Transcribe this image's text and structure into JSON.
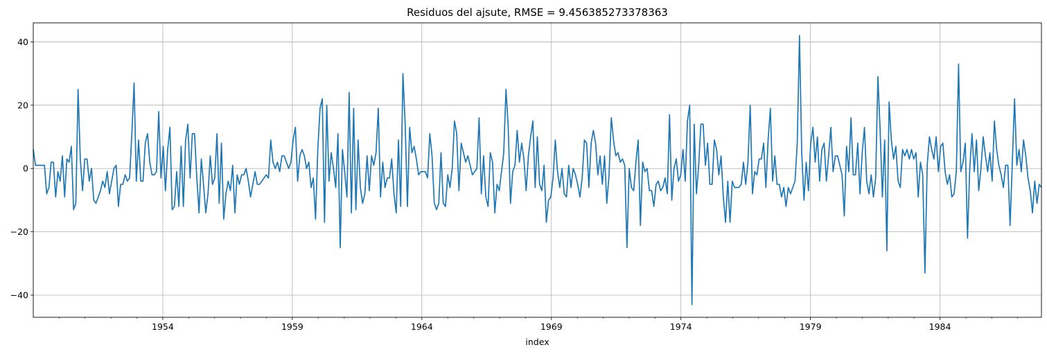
{
  "chart_data": {
    "type": "line",
    "title": "Residuos del ajsute, RMSE = 9.456385273378363",
    "xlabel": "index",
    "ylabel": "",
    "x_start": "1949-01",
    "x_end": "1987-12",
    "xlim": [
      "1949-01",
      "1987-12"
    ],
    "ylim": [
      -47,
      46
    ],
    "x_ticks": [
      "1954",
      "1959",
      "1964",
      "1969",
      "1974",
      "1979",
      "1984"
    ],
    "y_ticks": [
      -40,
      -20,
      0,
      20,
      40
    ],
    "grid": true,
    "legend": "none",
    "series": [
      {
        "color": "#1f77b4",
        "values": [
          6,
          1,
          1,
          1,
          1,
          1,
          -8,
          -6,
          2,
          2,
          -9,
          -1,
          -4,
          4,
          -9,
          3,
          2,
          7,
          -13,
          -11,
          25,
          3,
          -7,
          3,
          3,
          -4,
          0,
          -10,
          -11,
          -9,
          -7,
          -4,
          -6,
          -1,
          -8,
          -4,
          0,
          1,
          -12,
          -5,
          -5,
          -2,
          -4,
          -3,
          11,
          27,
          -4,
          9,
          -4,
          -4,
          8,
          11,
          2,
          -2,
          -2,
          -1,
          18,
          -3,
          7,
          -7,
          6,
          13,
          -13,
          -12,
          -1,
          -12,
          7,
          -12,
          9,
          14,
          -3,
          11,
          11,
          -3,
          -14,
          3,
          -5,
          -14,
          -8,
          4,
          -5,
          -3,
          11,
          -11,
          8,
          -16,
          -8,
          -4,
          -7,
          1,
          -14,
          -2,
          -5,
          -2,
          -2,
          0,
          -4,
          -9,
          -5,
          -1,
          -5,
          -5,
          -4,
          -3,
          -2,
          -3,
          9,
          2,
          0,
          2,
          -1,
          4,
          4,
          2,
          0,
          2,
          9,
          13,
          -4,
          4,
          6,
          4,
          0,
          2,
          -6,
          -3,
          -16,
          6,
          19,
          22,
          -17,
          20,
          -4,
          5,
          0,
          -6,
          11,
          -25,
          6,
          -1,
          -9,
          24,
          -14,
          19,
          -13,
          9,
          -6,
          -11,
          -8,
          4,
          -7,
          4,
          1,
          5,
          19,
          -9,
          2,
          -6,
          -3,
          -3,
          3,
          -8,
          -14,
          9,
          -12,
          30,
          14,
          -12,
          13,
          5,
          7,
          3,
          -2,
          -1,
          -1,
          -1,
          -3,
          11,
          4,
          -11,
          -13,
          -11,
          5,
          -11,
          -12,
          -2,
          -6,
          0,
          15,
          11,
          -7,
          8,
          5,
          2,
          4,
          1,
          -2,
          -1,
          0,
          16,
          -8,
          4,
          -9,
          -12,
          5,
          2,
          -14,
          -5,
          -7,
          -1,
          5,
          25,
          13,
          -11,
          -1,
          1,
          12,
          2,
          8,
          3,
          -7,
          4,
          10,
          15,
          -6,
          10,
          -5,
          -7,
          1,
          -17,
          -10,
          -9,
          -3,
          9,
          -1,
          -6,
          0,
          -8,
          -9,
          1,
          -6,
          0,
          -2,
          -5,
          -9,
          -3,
          9,
          8,
          -6,
          8,
          12,
          8,
          -2,
          4,
          -5,
          4,
          -11,
          -2,
          16,
          9,
          4,
          5,
          2,
          3,
          1,
          -25,
          0,
          -6,
          -7,
          2,
          9,
          -18,
          2,
          -1,
          0,
          -7,
          -7,
          -12,
          -5,
          -4,
          -7,
          -6,
          -3,
          -8,
          17,
          -10,
          0,
          3,
          -4,
          -2,
          6,
          -4,
          15,
          20,
          -43,
          14,
          -8,
          1,
          14,
          14,
          1,
          8,
          -5,
          -5,
          9,
          6,
          -2,
          4,
          -9,
          -17,
          -4,
          -17,
          -4,
          -6,
          -6,
          -6,
          -5,
          2,
          -5,
          2,
          20,
          -8,
          -1,
          -2,
          3,
          3,
          8,
          -6,
          9,
          19,
          -4,
          4,
          -5,
          -5,
          -9,
          -6,
          -12,
          -6,
          -8,
          -6,
          -4,
          8,
          42,
          5,
          -10,
          2,
          -7,
          8,
          13,
          2,
          10,
          -4,
          6,
          8,
          -4,
          4,
          13,
          -1,
          4,
          4,
          1,
          -2,
          -15,
          7,
          -1,
          16,
          -2,
          -2,
          8,
          -8,
          5,
          13,
          -4,
          -8,
          -2,
          -9,
          -3,
          29,
          12,
          -9,
          9,
          -26,
          21,
          9,
          3,
          7,
          -4,
          -6,
          6,
          4,
          6,
          3,
          6,
          3,
          5,
          -9,
          2,
          -2,
          -33,
          1,
          10,
          6,
          3,
          10,
          -1,
          7,
          8,
          -1,
          -5,
          -2,
          -9,
          -8,
          -1,
          33,
          -1,
          2,
          8,
          -22,
          0,
          11,
          -1,
          9,
          -7,
          0,
          10,
          4,
          -1,
          5,
          -4,
          15,
          6,
          1,
          -2,
          -6,
          1,
          1,
          -18,
          2,
          22,
          1,
          6,
          -1,
          9,
          4,
          -3,
          -7,
          -14,
          -4,
          -11,
          -5,
          -6
        ]
      }
    ]
  }
}
